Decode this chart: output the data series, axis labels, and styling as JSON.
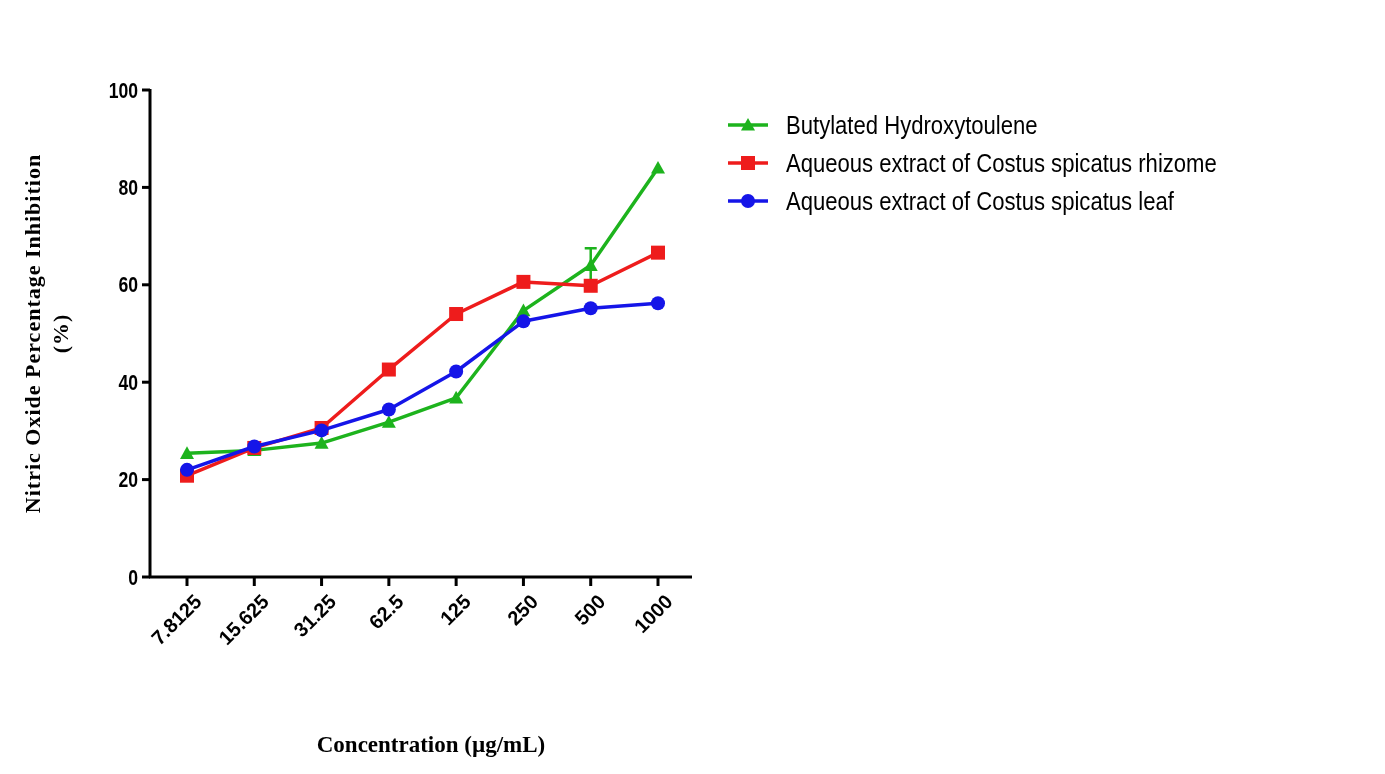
{
  "chart_data": {
    "type": "line",
    "xlabel": "Concentration (µg/mL)",
    "ylabel": "Nitric Oxide Percentage Inhibition (%)",
    "categories": [
      "7.8125",
      "15.625",
      "31.25",
      "62.5",
      "125",
      "250",
      "500",
      "1000"
    ],
    "ylim": [
      0,
      100
    ],
    "yticks": [
      0,
      20,
      40,
      60,
      80,
      100
    ],
    "legend": "top right",
    "series": [
      {
        "name": "Butylated Hydroxytoulene",
        "color": "#1db31d",
        "marker": "triangle",
        "values": [
          25.4,
          26,
          27.5,
          31.8,
          36.8,
          54.7,
          64,
          84
        ],
        "errors": [
          null,
          null,
          null,
          null,
          null,
          null,
          3.5,
          null
        ]
      },
      {
        "name": "Aqueous extract of Costus spicatus rhizome",
        "color": "#ee1c1c",
        "marker": "square",
        "values": [
          20.8,
          26.5,
          30.6,
          42.6,
          54,
          60.6,
          59.8,
          66.6
        ]
      },
      {
        "name": "Aqueous extract of Costus spicatus leaf",
        "color": "#1515e8",
        "marker": "circle",
        "values": [
          22,
          26.8,
          30.1,
          34.4,
          42.2,
          52.5,
          55.2,
          56.2
        ]
      }
    ]
  }
}
